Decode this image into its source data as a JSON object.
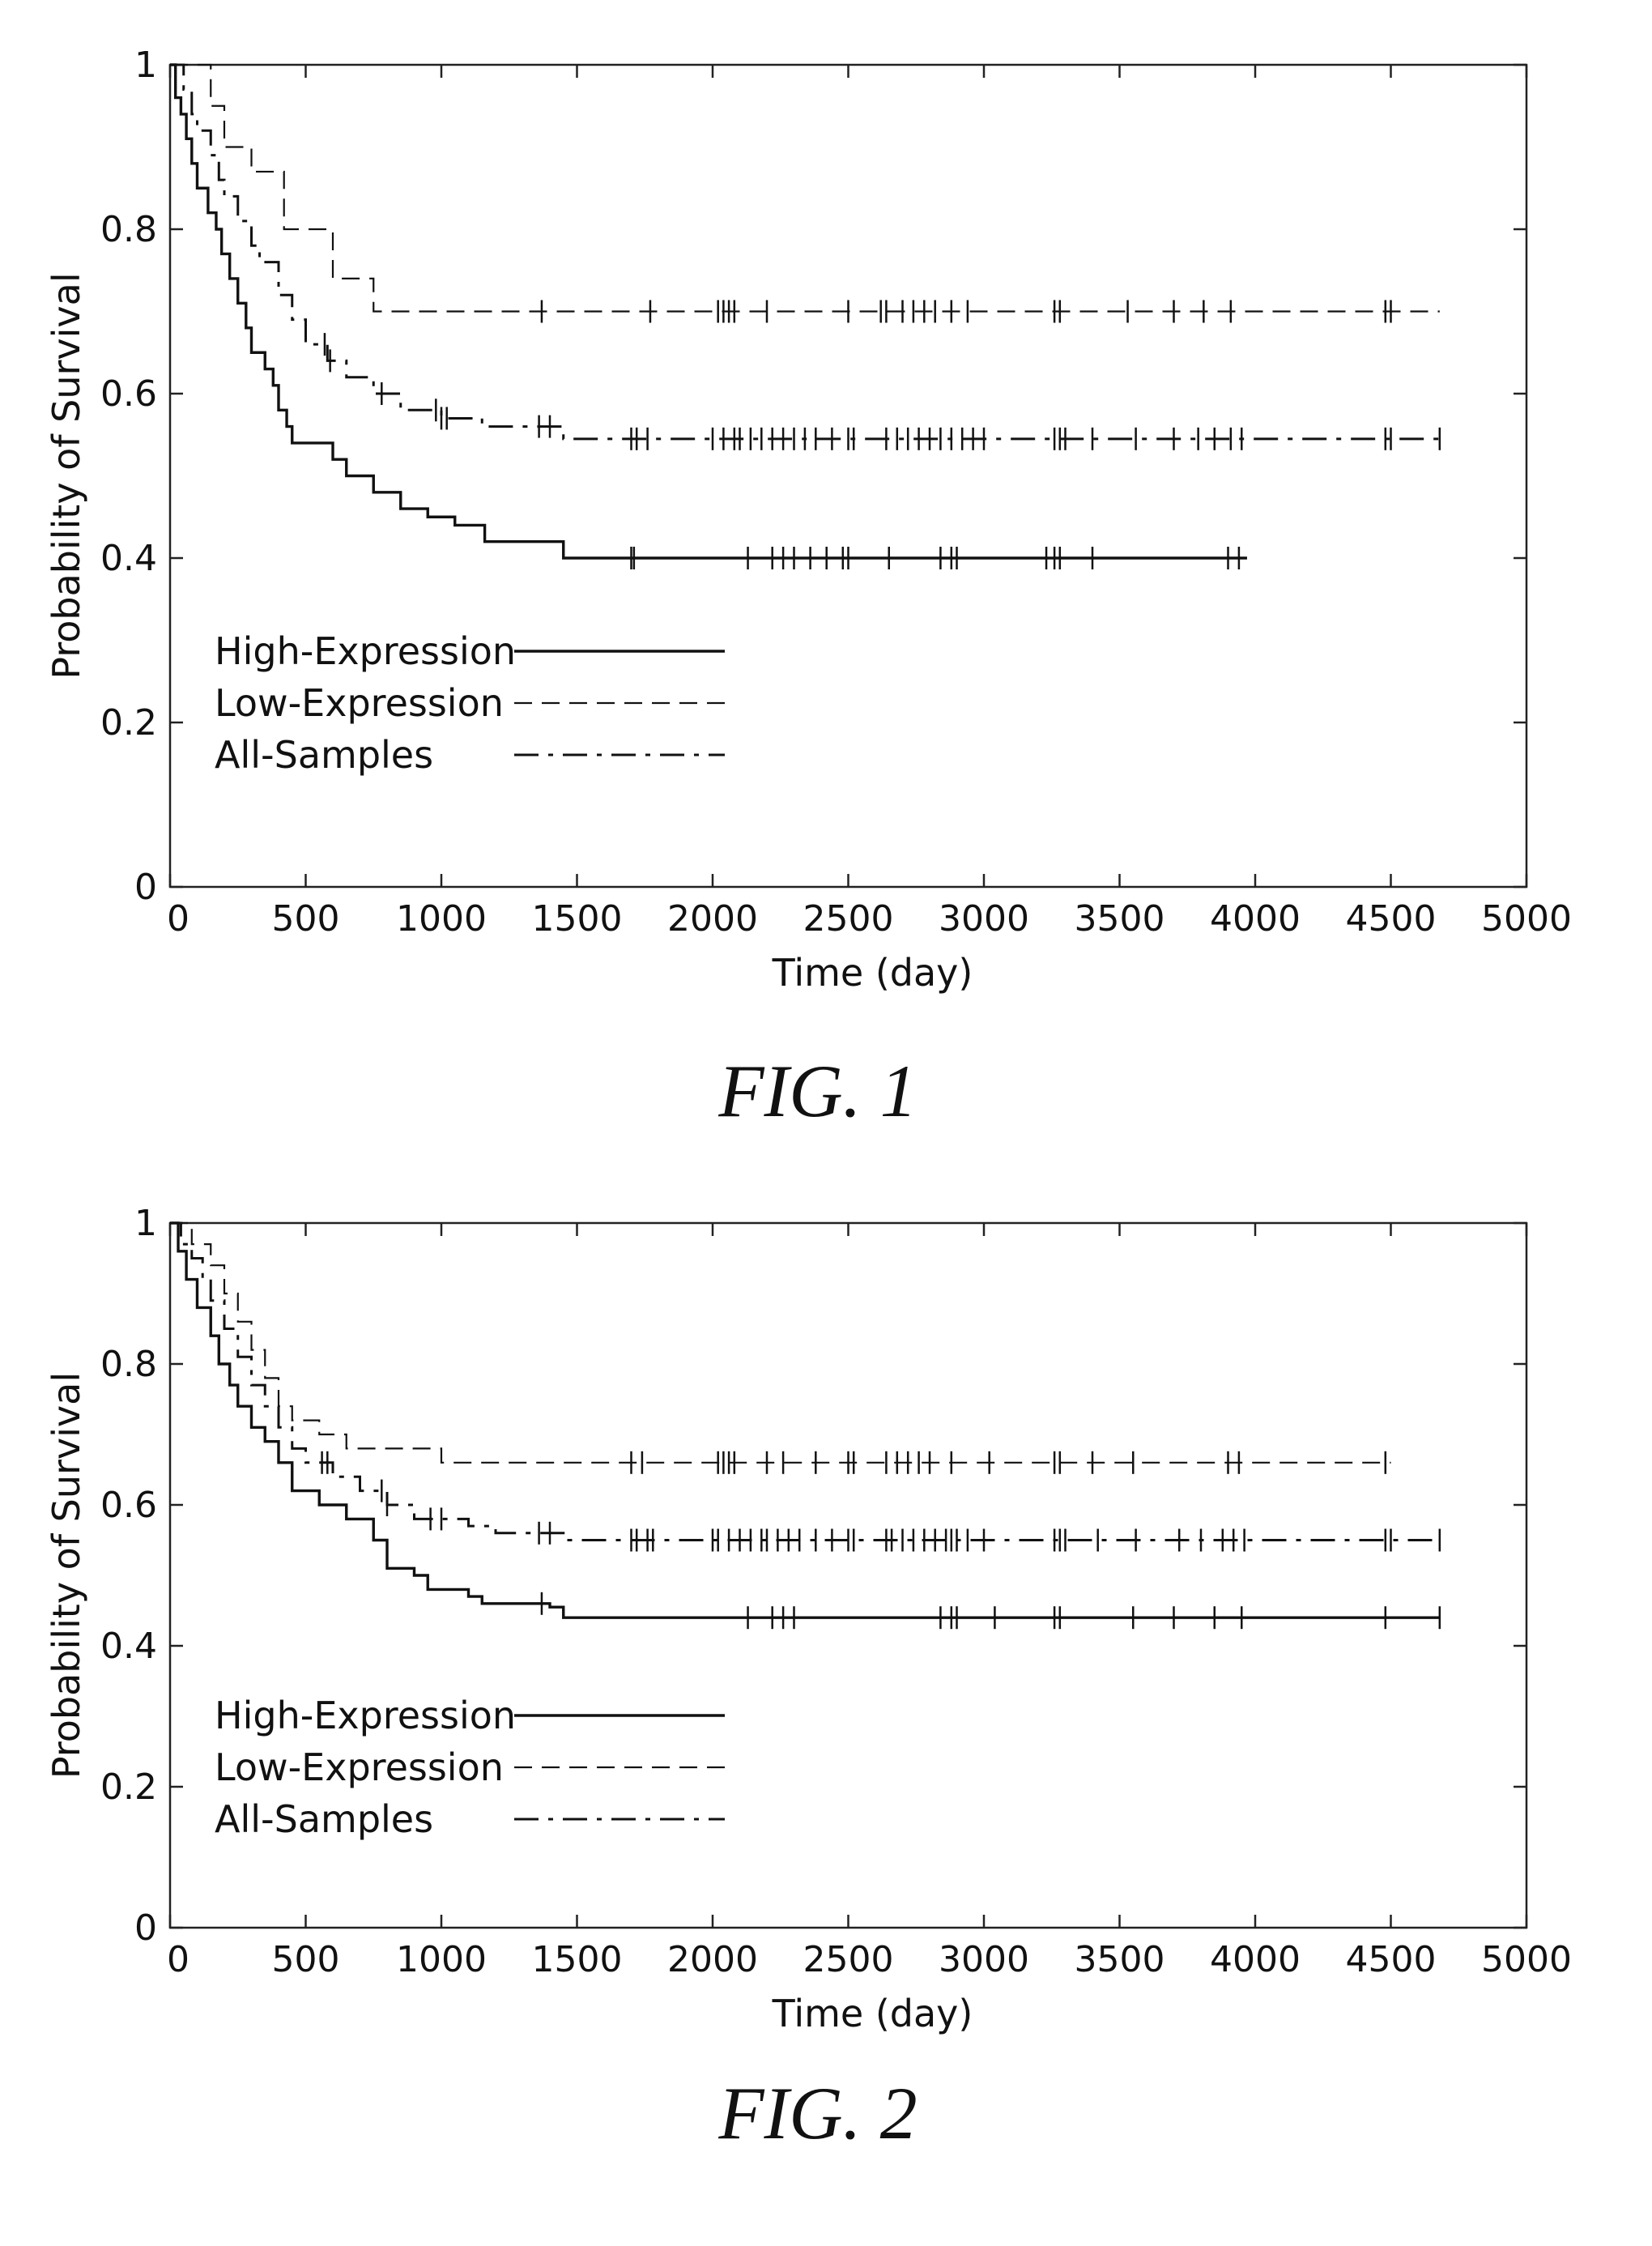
{
  "chart_data": [
    {
      "type": "line",
      "caption": "FIG. 1",
      "title": "",
      "xlabel": "Time (day)",
      "ylabel": "Probability of Survival",
      "xlim": [
        0,
        5000
      ],
      "ylim": [
        0,
        1
      ],
      "x_ticks": [
        0,
        500,
        1000,
        1500,
        2000,
        2500,
        3000,
        3500,
        4000,
        4500,
        5000
      ],
      "y_ticks": [
        0,
        0.2,
        0.4,
        0.6,
        0.8,
        1
      ],
      "y_tick_labels": [
        "0",
        "0.2",
        "0.4",
        "0.6",
        "0.8",
        "1"
      ],
      "grid": false,
      "legend_position": "bottom-left",
      "series": [
        {
          "name": "High-Expression",
          "style": "solid",
          "steps": [
            [
              0,
              1.0
            ],
            [
              20,
              0.96
            ],
            [
              40,
              0.94
            ],
            [
              60,
              0.91
            ],
            [
              80,
              0.88
            ],
            [
              100,
              0.85
            ],
            [
              140,
              0.82
            ],
            [
              170,
              0.8
            ],
            [
              190,
              0.77
            ],
            [
              220,
              0.74
            ],
            [
              250,
              0.71
            ],
            [
              280,
              0.68
            ],
            [
              300,
              0.65
            ],
            [
              350,
              0.63
            ],
            [
              380,
              0.61
            ],
            [
              400,
              0.58
            ],
            [
              430,
              0.56
            ],
            [
              450,
              0.54
            ],
            [
              600,
              0.52
            ],
            [
              650,
              0.5
            ],
            [
              750,
              0.48
            ],
            [
              850,
              0.46
            ],
            [
              950,
              0.45
            ],
            [
              1050,
              0.44
            ],
            [
              1160,
              0.42
            ],
            [
              1450,
              0.4
            ],
            [
              3970,
              0.4
            ]
          ],
          "censored": [
            1700,
            1710,
            2130,
            2220,
            2260,
            2300,
            2360,
            2420,
            2480,
            2500,
            2650,
            2840,
            2880,
            2900,
            3230,
            3260,
            3280,
            3400,
            3900,
            3940
          ]
        },
        {
          "name": "Low-Expression",
          "style": "dashed",
          "steps": [
            [
              0,
              1.0
            ],
            [
              150,
              0.95
            ],
            [
              200,
              0.9
            ],
            [
              300,
              0.87
            ],
            [
              420,
              0.8
            ],
            [
              600,
              0.74
            ],
            [
              750,
              0.7
            ],
            [
              4680,
              0.7
            ]
          ],
          "censored": [
            1370,
            1770,
            2020,
            2040,
            2060,
            2080,
            2200,
            2500,
            2620,
            2640,
            2700,
            2740,
            2780,
            2820,
            2880,
            2940,
            3260,
            3280,
            3530,
            3700,
            3810,
            3910,
            4480,
            4500
          ]
        },
        {
          "name": "All-Samples",
          "style": "dashdot",
          "steps": [
            [
              0,
              1.0
            ],
            [
              50,
              0.97
            ],
            [
              80,
              0.94
            ],
            [
              100,
              0.92
            ],
            [
              150,
              0.89
            ],
            [
              180,
              0.86
            ],
            [
              200,
              0.84
            ],
            [
              250,
              0.81
            ],
            [
              300,
              0.78
            ],
            [
              330,
              0.76
            ],
            [
              400,
              0.72
            ],
            [
              450,
              0.69
            ],
            [
              500,
              0.66
            ],
            [
              580,
              0.64
            ],
            [
              650,
              0.62
            ],
            [
              750,
              0.6
            ],
            [
              850,
              0.58
            ],
            [
              1000,
              0.57
            ],
            [
              1150,
              0.56
            ],
            [
              1450,
              0.545
            ],
            [
              4680,
              0.545
            ]
          ],
          "censored": [
            570,
            590,
            780,
            980,
            1000,
            1020,
            1360,
            1400,
            1700,
            1720,
            1760,
            2000,
            2040,
            2080,
            2100,
            2140,
            2180,
            2220,
            2260,
            2300,
            2340,
            2380,
            2440,
            2500,
            2520,
            2640,
            2680,
            2720,
            2760,
            2800,
            2840,
            2880,
            2920,
            2960,
            3000,
            3260,
            3280,
            3300,
            3400,
            3560,
            3700,
            3790,
            3850,
            3910,
            3950,
            4480,
            4500,
            4680
          ]
        }
      ]
    },
    {
      "type": "line",
      "caption": "FIG. 2",
      "title": "",
      "xlabel": "Time (day)",
      "ylabel": "Probability of Survival",
      "xlim": [
        0,
        5000
      ],
      "ylim": [
        0,
        1
      ],
      "x_ticks": [
        0,
        500,
        1000,
        1500,
        2000,
        2500,
        3000,
        3500,
        4000,
        4500,
        5000
      ],
      "y_ticks": [
        0,
        0.2,
        0.4,
        0.6,
        0.8,
        1
      ],
      "y_tick_labels": [
        "0",
        "0.2",
        "0.4",
        "0.6",
        "0.8",
        "1"
      ],
      "grid": false,
      "legend_position": "bottom-left",
      "series": [
        {
          "name": "High-Expression",
          "style": "solid",
          "steps": [
            [
              0,
              1.0
            ],
            [
              30,
              0.96
            ],
            [
              60,
              0.92
            ],
            [
              100,
              0.88
            ],
            [
              150,
              0.84
            ],
            [
              180,
              0.8
            ],
            [
              220,
              0.77
            ],
            [
              250,
              0.74
            ],
            [
              300,
              0.71
            ],
            [
              350,
              0.69
            ],
            [
              400,
              0.66
            ],
            [
              450,
              0.62
            ],
            [
              550,
              0.6
            ],
            [
              650,
              0.58
            ],
            [
              750,
              0.55
            ],
            [
              800,
              0.51
            ],
            [
              900,
              0.5
            ],
            [
              950,
              0.48
            ],
            [
              1100,
              0.47
            ],
            [
              1150,
              0.46
            ],
            [
              1400,
              0.455
            ],
            [
              1450,
              0.44
            ],
            [
              4680,
              0.44
            ]
          ],
          "censored": [
            1370,
            2130,
            2220,
            2260,
            2300,
            2840,
            2880,
            2900,
            3040,
            3260,
            3280,
            3550,
            3700,
            3850,
            3950,
            4480,
            4680
          ]
        },
        {
          "name": "Low-Expression",
          "style": "dashed",
          "steps": [
            [
              0,
              1.0
            ],
            [
              80,
              0.97
            ],
            [
              150,
              0.94
            ],
            [
              200,
              0.9
            ],
            [
              250,
              0.86
            ],
            [
              300,
              0.82
            ],
            [
              350,
              0.78
            ],
            [
              400,
              0.74
            ],
            [
              450,
              0.72
            ],
            [
              550,
              0.7
            ],
            [
              650,
              0.68
            ],
            [
              1000,
              0.66
            ],
            [
              4500,
              0.66
            ]
          ],
          "censored": [
            1700,
            1740,
            2020,
            2040,
            2060,
            2080,
            2200,
            2260,
            2380,
            2500,
            2520,
            2640,
            2680,
            2720,
            2760,
            2800,
            2880,
            3020,
            3260,
            3280,
            3400,
            3550,
            3900,
            3940,
            4480
          ]
        },
        {
          "name": "All-Samples",
          "style": "dashdot",
          "steps": [
            [
              0,
              1.0
            ],
            [
              40,
              0.97
            ],
            [
              80,
              0.95
            ],
            [
              120,
              0.92
            ],
            [
              150,
              0.89
            ],
            [
              200,
              0.85
            ],
            [
              250,
              0.81
            ],
            [
              300,
              0.77
            ],
            [
              350,
              0.74
            ],
            [
              400,
              0.71
            ],
            [
              450,
              0.68
            ],
            [
              500,
              0.66
            ],
            [
              600,
              0.64
            ],
            [
              700,
              0.62
            ],
            [
              800,
              0.6
            ],
            [
              900,
              0.58
            ],
            [
              1100,
              0.57
            ],
            [
              1200,
              0.56
            ],
            [
              1450,
              0.55
            ],
            [
              4680,
              0.55
            ]
          ],
          "censored": [
            560,
            580,
            780,
            800,
            960,
            1000,
            1360,
            1400,
            1700,
            1720,
            1760,
            1780,
            2000,
            2020,
            2060,
            2100,
            2140,
            2180,
            2200,
            2240,
            2280,
            2320,
            2380,
            2440,
            2500,
            2520,
            2640,
            2660,
            2700,
            2740,
            2780,
            2820,
            2860,
            2880,
            2900,
            2940,
            3000,
            3260,
            3280,
            3300,
            3420,
            3560,
            3720,
            3800,
            3880,
            3920,
            3960,
            4480,
            4500,
            4680
          ]
        }
      ]
    }
  ]
}
